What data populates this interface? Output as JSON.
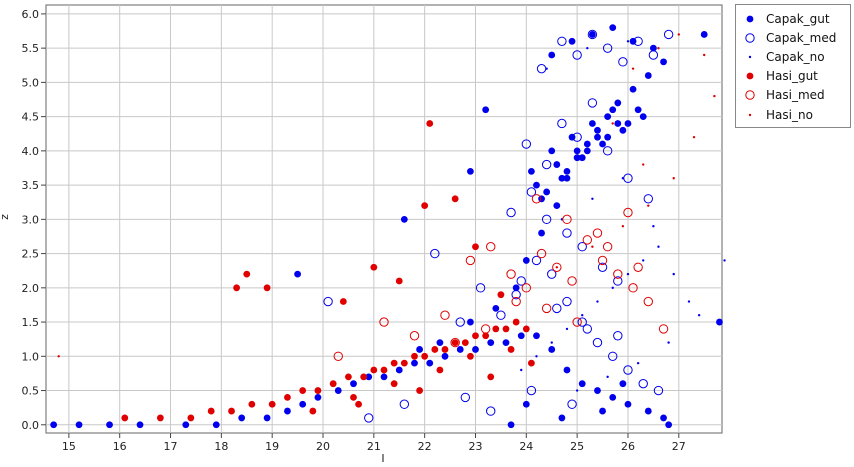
{
  "chart_data": {
    "type": "scatter",
    "title": "",
    "xlabel": "I",
    "ylabel": "z",
    "xlim": [
      14.55,
      27.85
    ],
    "ylim": [
      -0.12,
      6.13
    ],
    "x_ticks": [
      "15",
      "16",
      "17",
      "18",
      "19",
      "20",
      "21",
      "22",
      "23",
      "24",
      "25",
      "26",
      "27"
    ],
    "y_ticks": [
      "0.0",
      "0.5",
      "1.0",
      "1.5",
      "2.0",
      "2.5",
      "3.0",
      "3.5",
      "4.0",
      "4.5",
      "5.0",
      "5.5",
      "6.0"
    ],
    "grid": true,
    "legend_position": "right",
    "series": [
      {
        "name": "Capak_gut",
        "color": "#0000ee",
        "marker": "filled-circle",
        "x": [
          14.7,
          15.2,
          15.8,
          16.4,
          17.3,
          17.9,
          18.4,
          18.9,
          19.3,
          19.6,
          19.9,
          20.3,
          20.6,
          20.9,
          21.2,
          21.5,
          21.8,
          22.1,
          22.4,
          22.7,
          23.0,
          23.3,
          23.6,
          23.9,
          24.2,
          24.5,
          24.8,
          25.1,
          25.4,
          25.7,
          26.0,
          26.4,
          26.7,
          19.5,
          21.6,
          22.3,
          22.9,
          23.4,
          23.8,
          24.0,
          24.3,
          24.6,
          24.8,
          25.0,
          25.2,
          25.4,
          25.6,
          25.8,
          26.1,
          26.4,
          26.7,
          24.1,
          24.5,
          24.9,
          25.3,
          25.7,
          24.2,
          24.6,
          25.0,
          25.4,
          25.8,
          26.2,
          24.3,
          24.7,
          25.1,
          25.5,
          25.9,
          26.3,
          24.4,
          24.8,
          25.2,
          25.6,
          26.0,
          24.5,
          24.9,
          25.3,
          25.7,
          26.1,
          26.5,
          27.5,
          27.8,
          23.2,
          22.9,
          21.9,
          24.0,
          25.5,
          26.8,
          23.7,
          24.7,
          25.9
        ],
        "y": [
          0.0,
          0.0,
          0.0,
          0.0,
          0.0,
          0.0,
          0.1,
          0.1,
          0.2,
          0.3,
          0.4,
          0.5,
          0.6,
          0.7,
          0.7,
          0.8,
          0.9,
          0.9,
          1.0,
          1.1,
          1.1,
          1.2,
          1.2,
          1.3,
          1.3,
          1.1,
          0.8,
          0.6,
          0.5,
          0.4,
          0.3,
          0.2,
          0.1,
          2.2,
          3.0,
          1.2,
          1.5,
          1.7,
          2.0,
          2.4,
          2.8,
          3.2,
          3.6,
          3.9,
          4.1,
          4.3,
          4.5,
          4.7,
          4.9,
          5.1,
          5.3,
          3.7,
          4.0,
          4.2,
          4.4,
          4.6,
          3.5,
          3.8,
          4.0,
          4.2,
          4.4,
          4.6,
          3.3,
          3.6,
          3.9,
          4.1,
          4.3,
          4.5,
          3.4,
          3.7,
          4.0,
          4.2,
          4.4,
          5.4,
          5.6,
          5.7,
          5.8,
          5.6,
          5.5,
          5.7,
          1.5,
          4.6,
          3.7,
          1.1,
          0.3,
          0.2,
          0.0,
          0.0,
          0.1,
          0.6
        ]
      },
      {
        "name": "Capak_med",
        "color": "#0000ee",
        "marker": "open-circle",
        "x": [
          20.1,
          20.9,
          21.6,
          22.2,
          22.7,
          23.1,
          23.5,
          23.9,
          24.2,
          24.5,
          24.8,
          25.1,
          25.4,
          25.7,
          26.0,
          26.3,
          26.6,
          23.7,
          24.1,
          24.4,
          24.8,
          25.1,
          25.5,
          25.8,
          24.0,
          24.4,
          24.7,
          25.0,
          25.3,
          25.6,
          26.0,
          26.4,
          24.3,
          24.7,
          25.0,
          25.3,
          25.6,
          25.9,
          26.2,
          26.5,
          26.8,
          23.8,
          24.6,
          25.2,
          25.8,
          22.8,
          23.3,
          24.1,
          24.9
        ],
        "y": [
          1.8,
          0.1,
          0.3,
          2.5,
          1.5,
          2.0,
          1.6,
          2.1,
          2.4,
          2.2,
          1.8,
          1.5,
          1.2,
          1.0,
          0.8,
          0.6,
          0.5,
          3.1,
          3.4,
          3.0,
          2.8,
          2.6,
          2.3,
          2.1,
          4.1,
          3.8,
          4.4,
          4.2,
          4.7,
          4.0,
          3.6,
          3.3,
          5.2,
          5.6,
          5.4,
          5.7,
          5.5,
          5.3,
          5.6,
          5.4,
          5.7,
          1.9,
          1.7,
          1.4,
          1.3,
          0.4,
          0.2,
          0.5,
          0.3
        ]
      },
      {
        "name": "Capak_no",
        "color": "#0000ee",
        "marker": "dot",
        "x": [
          23.9,
          24.2,
          24.5,
          24.8,
          25.1,
          25.4,
          25.7,
          26.0,
          26.3,
          26.6,
          26.9,
          27.2,
          25.0,
          25.6,
          26.2,
          26.8,
          27.4,
          27.9,
          24.7,
          25.3,
          25.9,
          26.5,
          24.4,
          25.2,
          26.0,
          26.7
        ],
        "y": [
          0.8,
          1.0,
          1.2,
          1.4,
          1.6,
          1.8,
          2.0,
          2.2,
          2.4,
          2.6,
          2.2,
          1.8,
          0.5,
          0.7,
          0.9,
          1.2,
          1.6,
          2.4,
          3.0,
          3.3,
          3.6,
          2.9,
          5.2,
          5.5,
          5.6,
          5.3
        ]
      },
      {
        "name": "Hasi_gut",
        "color": "#e00000",
        "marker": "filled-circle",
        "x": [
          16.1,
          16.8,
          17.4,
          17.8,
          18.2,
          18.6,
          19.0,
          19.3,
          19.6,
          19.9,
          20.2,
          20.5,
          20.8,
          21.0,
          21.2,
          21.4,
          21.6,
          21.8,
          22.0,
          22.2,
          22.4,
          22.6,
          22.8,
          23.0,
          23.2,
          23.4,
          23.6,
          23.8,
          24.0,
          18.3,
          18.5,
          18.9,
          20.4,
          21.0,
          21.5,
          22.0,
          22.1,
          22.6,
          23.0,
          23.5,
          20.6,
          21.4,
          22.3,
          22.9,
          23.7,
          19.8,
          20.7,
          21.9,
          23.3,
          24.1
        ],
        "y": [
          0.1,
          0.1,
          0.1,
          0.2,
          0.2,
          0.3,
          0.3,
          0.4,
          0.5,
          0.5,
          0.6,
          0.7,
          0.7,
          0.8,
          0.8,
          0.9,
          0.9,
          1.0,
          1.0,
          1.1,
          1.1,
          1.2,
          1.2,
          1.3,
          1.3,
          1.4,
          1.4,
          1.5,
          1.4,
          2.0,
          2.2,
          2.0,
          1.8,
          2.3,
          2.1,
          3.2,
          4.4,
          3.3,
          2.6,
          1.9,
          0.4,
          0.6,
          0.8,
          1.0,
          1.1,
          0.2,
          0.3,
          0.5,
          0.7,
          0.9
        ]
      },
      {
        "name": "Hasi_med",
        "color": "#e00000",
        "marker": "open-circle",
        "x": [
          20.3,
          21.2,
          21.8,
          22.4,
          22.9,
          23.3,
          23.7,
          24.0,
          24.3,
          24.6,
          24.9,
          25.2,
          25.5,
          25.8,
          26.1,
          26.4,
          26.7,
          22.6,
          23.2,
          23.8,
          24.4,
          25.0,
          25.6,
          26.2,
          24.2,
          24.8,
          25.4,
          26.0
        ],
        "y": [
          1.0,
          1.5,
          1.3,
          1.6,
          2.4,
          2.6,
          2.2,
          2.0,
          2.5,
          2.3,
          2.1,
          2.7,
          2.4,
          2.2,
          2.0,
          1.8,
          1.4,
          1.2,
          1.4,
          1.8,
          1.7,
          1.5,
          2.6,
          2.3,
          3.3,
          3.0,
          2.8,
          3.1
        ]
      },
      {
        "name": "Hasi_no",
        "color": "#e00000",
        "marker": "dot",
        "x": [
          14.8,
          24.6,
          25.3,
          25.9,
          26.4,
          26.9,
          27.3,
          27.7,
          26.1,
          26.6,
          27.0,
          25.7,
          26.3,
          27.5
        ],
        "y": [
          1.0,
          2.3,
          2.6,
          2.9,
          3.2,
          3.6,
          4.2,
          4.8,
          5.2,
          5.5,
          5.7,
          4.4,
          3.8,
          5.4
        ]
      }
    ]
  }
}
